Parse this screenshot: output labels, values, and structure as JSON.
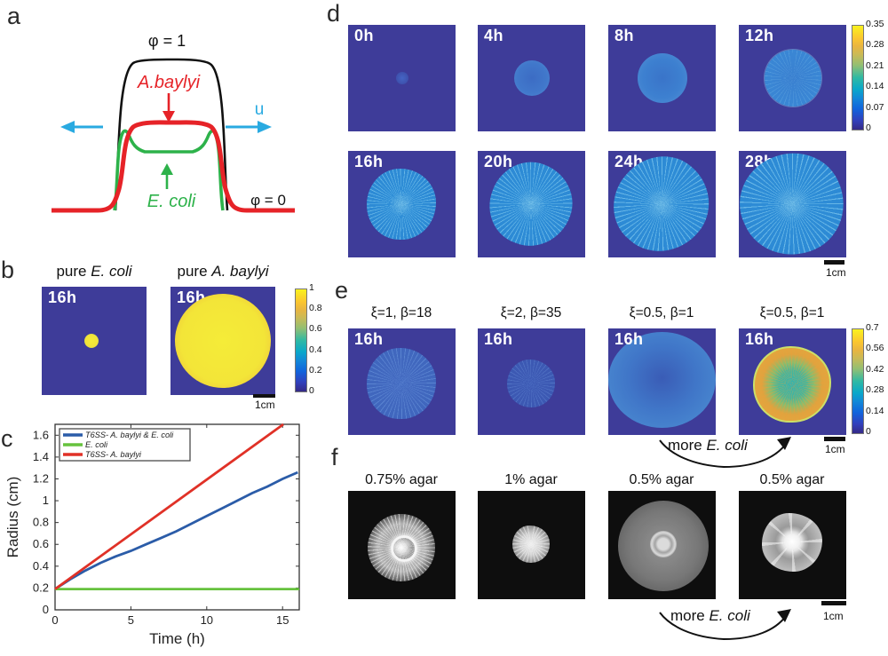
{
  "panels": {
    "a": {
      "letter": "a",
      "phi_top": "φ = 1",
      "phi_bottom": "φ = 0",
      "species_red": "A.baylyi",
      "species_green": "E. coli",
      "velocity": "u"
    },
    "b": {
      "letter": "b",
      "title_left_prefix": "pure ",
      "title_left_species": "E. coli",
      "title_right_prefix": "pure ",
      "title_right_species": "A. baylyi",
      "times": [
        "16h",
        "16h"
      ],
      "colorbar": [
        "1",
        "0.8",
        "0.6",
        "0.4",
        "0.2",
        "0"
      ],
      "scalebar": "1cm"
    },
    "c": {
      "letter": "c"
    },
    "d": {
      "letter": "d",
      "times": [
        "0h",
        "4h",
        "8h",
        "12h",
        "16h",
        "20h",
        "24h",
        "28h"
      ],
      "colorbar": [
        "0.35",
        "0.28",
        "0.21",
        "0.14",
        "0.07",
        "0"
      ],
      "scalebar": "1cm"
    },
    "e": {
      "letter": "e",
      "params": [
        "ξ=1, β=18",
        "ξ=2, β=35",
        "ξ=0.5, β=1",
        "ξ=0.5, β=1"
      ],
      "times": [
        "16h",
        "16h",
        "16h",
        "16h"
      ],
      "colorbar": [
        "0.7",
        "0.56",
        "0.42",
        "0.28",
        "0.14",
        "0"
      ],
      "annotation_prefix": "more ",
      "annotation_species": "E. coli",
      "scalebar": "1cm"
    },
    "f": {
      "letter": "f",
      "labels": [
        "0.75% agar",
        "1% agar",
        "0.5% agar",
        "0.5% agar"
      ],
      "annotation_prefix": "more ",
      "annotation_species": "E. coli",
      "scalebar": "1cm"
    }
  },
  "chart_data": {
    "type": "line",
    "xlabel": "Time (h)",
    "ylabel": "Radius (cm)",
    "xlim": [
      0,
      16.1
    ],
    "ylim": [
      0,
      1.7
    ],
    "xticks": [
      0,
      5,
      10,
      15
    ],
    "yticks": [
      0,
      0.2,
      0.4,
      0.6,
      0.8,
      1,
      1.2,
      1.4,
      1.6
    ],
    "grid": false,
    "legend_position": "top-left",
    "series": [
      {
        "name": "T6SS- A. baylyi & E. coli",
        "color": "#2b5ca8",
        "x": [
          0,
          1,
          2,
          3,
          4,
          5,
          6,
          7,
          8,
          9,
          10,
          11,
          12,
          13,
          14,
          15,
          16
        ],
        "y": [
          0.19,
          0.28,
          0.36,
          0.43,
          0.49,
          0.54,
          0.6,
          0.66,
          0.72,
          0.79,
          0.86,
          0.93,
          1.0,
          1.07,
          1.13,
          1.2,
          1.26
        ]
      },
      {
        "name": "E. coli",
        "color": "#66c23d",
        "x": [
          0,
          16.1
        ],
        "y": [
          0.19,
          0.19
        ]
      },
      {
        "name": "T6SS- A. baylyi",
        "color": "#e03127",
        "x": [
          0,
          15.05
        ],
        "y": [
          0.19,
          1.7
        ]
      }
    ]
  }
}
